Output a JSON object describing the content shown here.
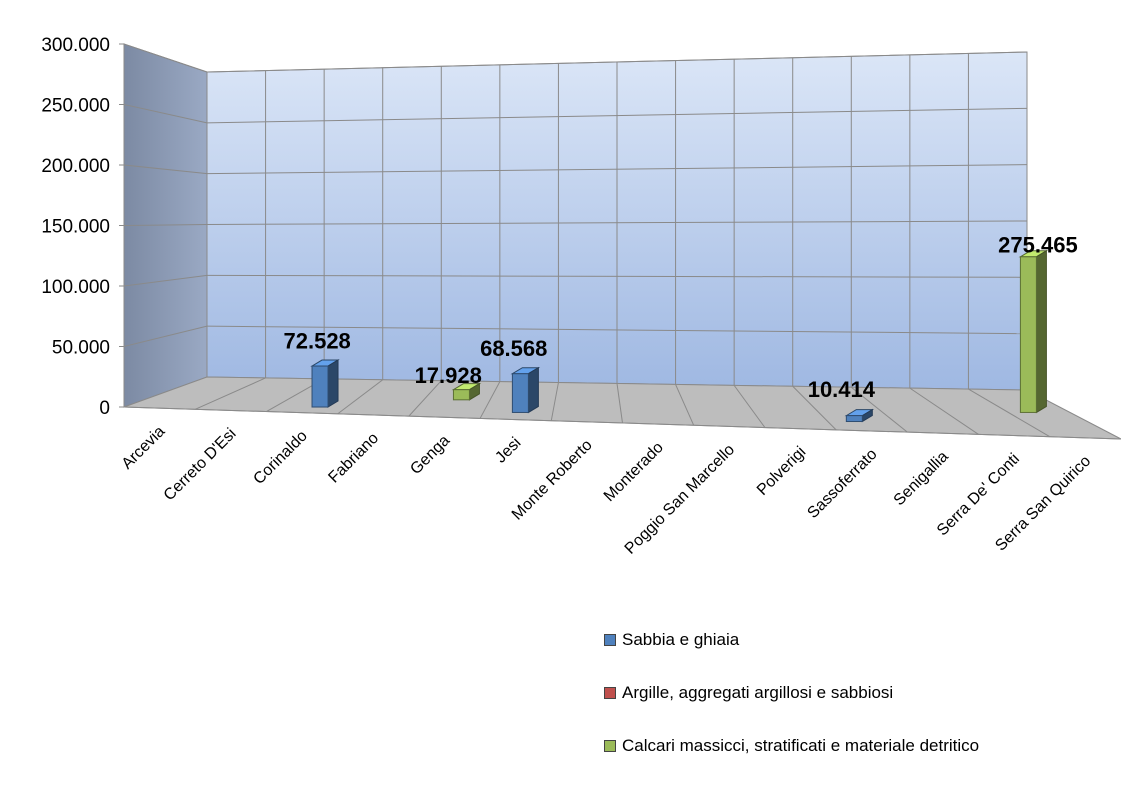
{
  "chart_data": {
    "type": "bar",
    "title": "",
    "xlabel": "",
    "ylabel": "",
    "ylim": [
      0,
      300000
    ],
    "yticks": [
      0,
      50000,
      100000,
      150000,
      200000,
      250000,
      300000
    ],
    "ytick_labels": [
      "0",
      "50.000",
      "100.000",
      "150.000",
      "200.000",
      "250.000",
      "300.000"
    ],
    "categories": [
      "Arcevia",
      "Cerreto D'Esi",
      "Corinaldo",
      "Fabriano",
      "Genga",
      "Jesi",
      "Monte Roberto",
      "Monterado",
      "Poggio San Marcello",
      "Polverigi",
      "Sassoferrato",
      "Senigallia",
      "Serra De' Conti",
      "Serra San Quirico"
    ],
    "series": [
      {
        "name": "Sabbia e ghiaia",
        "color": "#4F81BD",
        "values": [
          0,
          0,
          72528,
          0,
          0,
          68568,
          0,
          0,
          0,
          0,
          10414,
          0,
          0,
          0
        ]
      },
      {
        "name": "Argille, aggregati argillosi e sabbiosi",
        "color": "#C0504D",
        "values": [
          0,
          0,
          0,
          0,
          0,
          0,
          0,
          0,
          0,
          0,
          0,
          0,
          0,
          0
        ]
      },
      {
        "name": "Calcari massicci, stratificati e materiale detritico",
        "color": "#9BBB59",
        "values": [
          0,
          0,
          0,
          0,
          17928,
          0,
          0,
          0,
          0,
          0,
          0,
          0,
          0,
          275465
        ]
      }
    ],
    "data_labels": [
      {
        "category": "Corinaldo",
        "text": "72.528"
      },
      {
        "category": "Genga",
        "text": "17.928"
      },
      {
        "category": "Jesi",
        "text": "68.568"
      },
      {
        "category": "Sassoferrato",
        "text": "10.414"
      },
      {
        "category": "Serra San Quirico",
        "text": "275.465"
      }
    ],
    "legend_position": "bottom-right",
    "grid": true,
    "view": "3d"
  }
}
